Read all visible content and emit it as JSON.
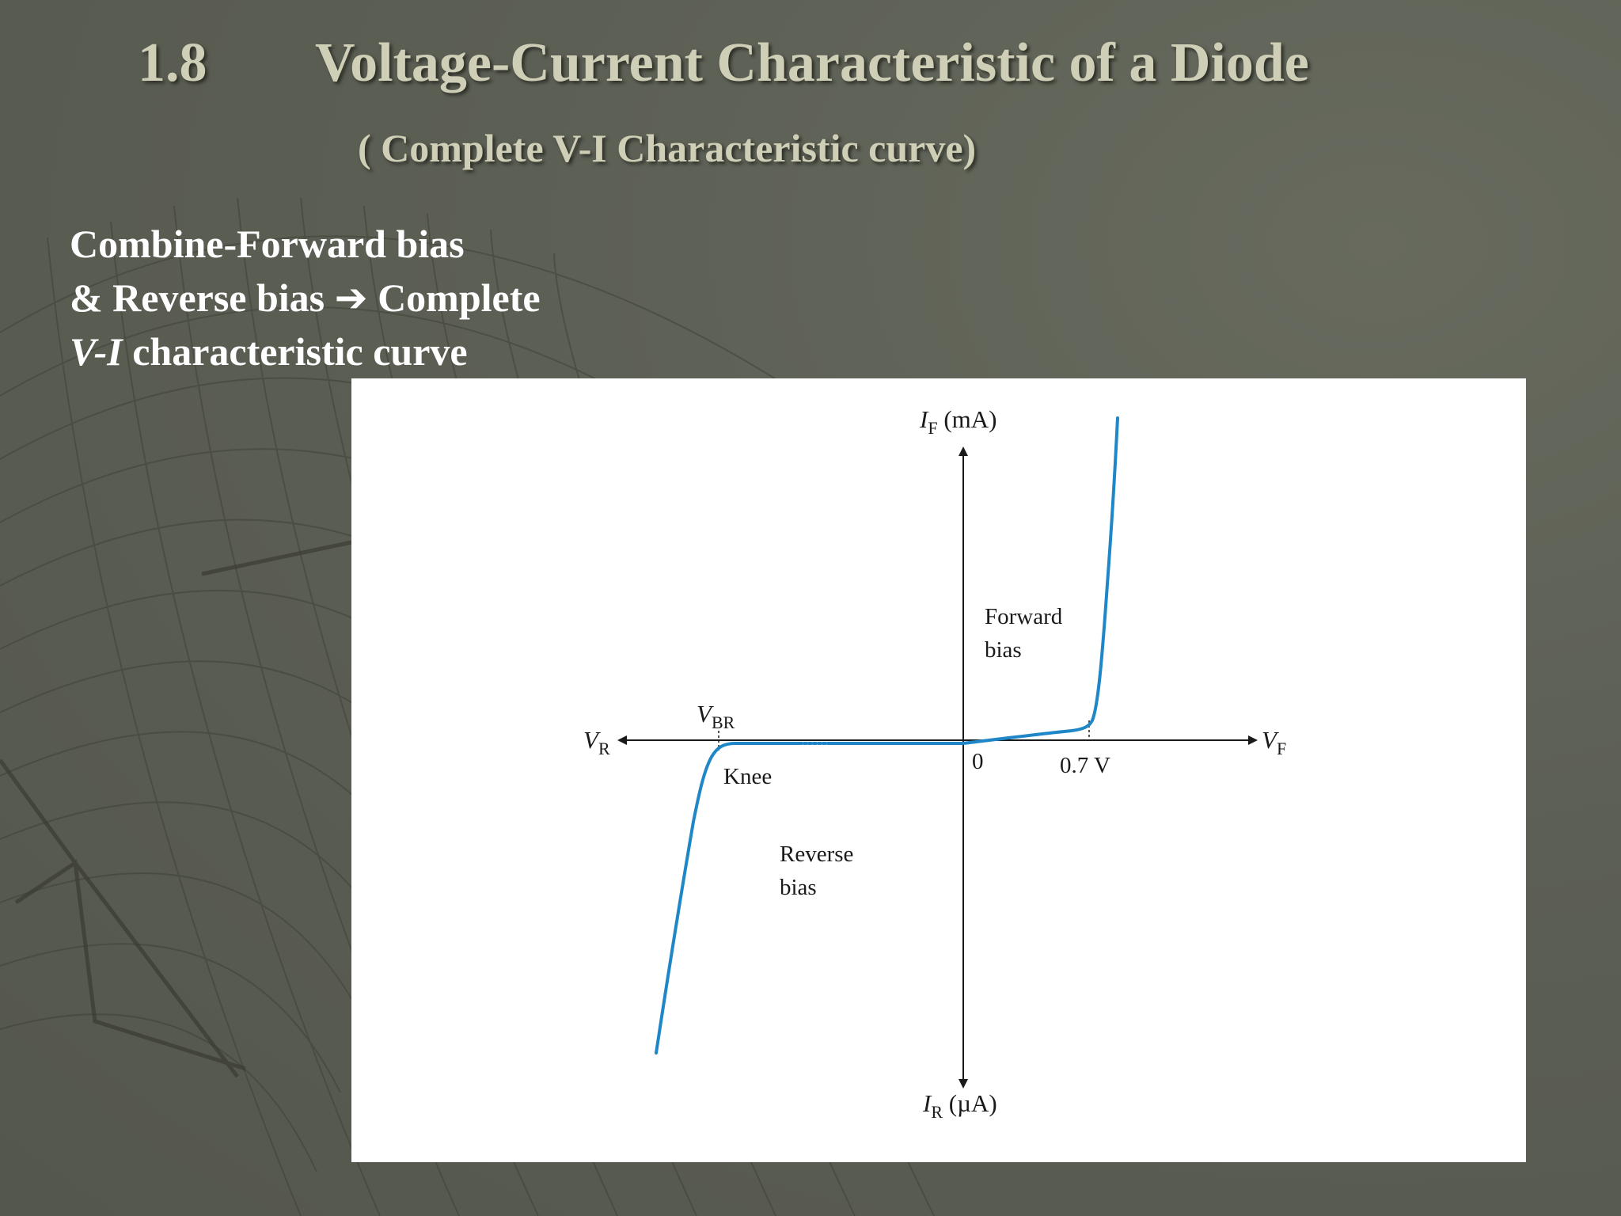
{
  "slide": {
    "number": "1.8",
    "title": "Voltage-Current Characteristic of a Diode",
    "subtitle": "( Complete V-I Characteristic curve)"
  },
  "description": {
    "line1": "Combine-Forward bias",
    "line2_prefix": "& Reverse bias",
    "line2_arrow": "➔",
    "line2_suffix": "Complete",
    "line3_italic": "V-I",
    "line3_rest": " characteristic curve"
  },
  "diagram": {
    "y_axis_top_var": "I",
    "y_axis_top_sub": "F",
    "y_axis_top_unit": " (mA)",
    "y_axis_bottom_var": "I",
    "y_axis_bottom_sub": "R",
    "y_axis_bottom_unit": " (µA)",
    "x_axis_right_var": "V",
    "x_axis_right_sub": "F",
    "x_axis_left_var": "V",
    "x_axis_left_sub": "R",
    "breakdown_var": "V",
    "breakdown_sub": "BR",
    "origin_label": "0",
    "threshold_label": "0.7 V",
    "knee_label": "Knee",
    "forward_label_line1": "Forward",
    "forward_label_line2": "bias",
    "reverse_label_line1": "Reverse",
    "reverse_label_line2": "bias",
    "curve_color": "#1f86c8"
  }
}
